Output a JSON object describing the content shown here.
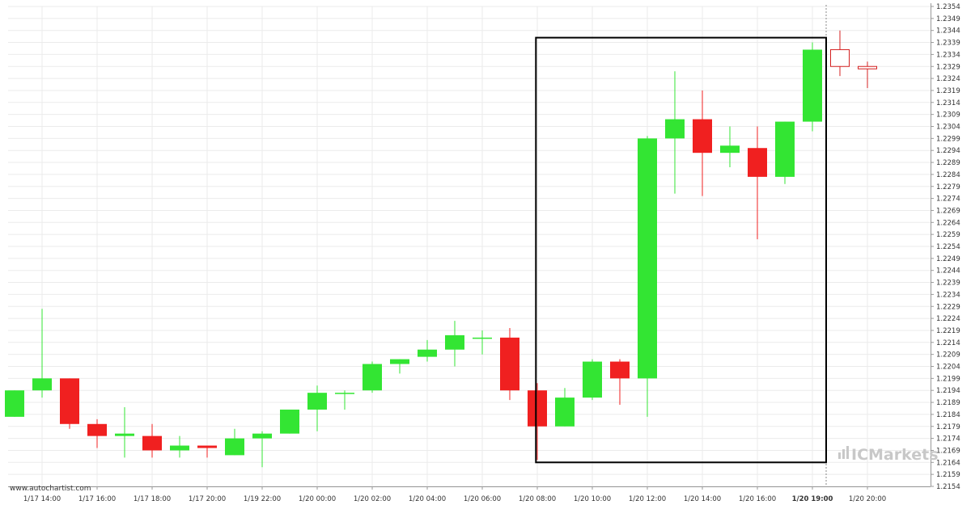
{
  "colors": {
    "bull": "#33e533",
    "bear": "#f02020",
    "hollow_bear": "#d42020",
    "grid": "#ebebeb",
    "pattern_box": "#000000",
    "current_line": "#888888",
    "watermark": "#c8c8c8"
  },
  "brand": {
    "watermark": "ICMarkets",
    "credit": "www.autochartist.com"
  },
  "chart_data": {
    "type": "candlestick",
    "title": "",
    "ylim": [
      1.2154,
      1.2354
    ],
    "yticks": [
      "1.2354",
      "1.2349",
      "1.2344",
      "1.2339",
      "1.2334",
      "1.2329",
      "1.2324",
      "1.2319",
      "1.2314",
      "1.2309",
      "1.2304",
      "1.2299",
      "1.2294",
      "1.2289",
      "1.2284",
      "1.2279",
      "1.2274",
      "1.2269",
      "1.2264",
      "1.2259",
      "1.2254",
      "1.2249",
      "1.2244",
      "1.2239",
      "1.2234",
      "1.2229",
      "1.2224",
      "1.2219",
      "1.2214",
      "1.2209",
      "1.2204",
      "1.2199",
      "1.2194",
      "1.2189",
      "1.2184",
      "1.2179",
      "1.2174",
      "1.2169",
      "1.2164",
      "1.2159",
      "1.2154"
    ],
    "xticks": [
      {
        "label": "1/17 14:00",
        "at": 1
      },
      {
        "label": "1/17 16:00",
        "at": 3
      },
      {
        "label": "1/17 18:00",
        "at": 5
      },
      {
        "label": "1/17 20:00",
        "at": 7
      },
      {
        "label": "1/19 22:00",
        "at": 9
      },
      {
        "label": "1/20 00:00",
        "at": 11
      },
      {
        "label": "1/20 02:00",
        "at": 13
      },
      {
        "label": "1/20 04:00",
        "at": 15
      },
      {
        "label": "1/20 06:00",
        "at": 17
      },
      {
        "label": "1/20 08:00",
        "at": 19
      },
      {
        "label": "1/20 10:00",
        "at": 21
      },
      {
        "label": "1/20 12:00",
        "at": 23
      },
      {
        "label": "1/20 14:00",
        "at": 25
      },
      {
        "label": "1/20 16:00",
        "at": 27
      },
      {
        "label": "1/20 19:00",
        "at": 29,
        "bold": true
      },
      {
        "label": "1/20 20:00",
        "at": 31
      }
    ],
    "candles": [
      {
        "o": 1.2183,
        "h": 1.2194,
        "l": 1.2183,
        "c": 1.2194
      },
      {
        "o": 1.2194,
        "h": 1.2228,
        "l": 1.2191,
        "c": 1.2199
      },
      {
        "o": 1.2199,
        "h": 1.2199,
        "l": 1.2178,
        "c": 1.218
      },
      {
        "o": 1.218,
        "h": 1.2182,
        "l": 1.217,
        "c": 1.2175
      },
      {
        "o": 1.2175,
        "h": 1.2187,
        "l": 1.2166,
        "c": 1.2176
      },
      {
        "o": 1.2175,
        "h": 1.218,
        "l": 1.2166,
        "c": 1.2169
      },
      {
        "o": 1.2169,
        "h": 1.2175,
        "l": 1.2166,
        "c": 1.2171
      },
      {
        "o": 1.2171,
        "h": 1.2171,
        "l": 1.2166,
        "c": 1.217
      },
      {
        "o": 1.2167,
        "h": 1.2178,
        "l": 1.2167,
        "c": 1.2174
      },
      {
        "o": 1.2174,
        "h": 1.2177,
        "l": 1.2162,
        "c": 1.2176
      },
      {
        "o": 1.2176,
        "h": 1.2186,
        "l": 1.2176,
        "c": 1.2186
      },
      {
        "o": 1.2186,
        "h": 1.2196,
        "l": 1.2177,
        "c": 1.2193
      },
      {
        "o": 1.2193,
        "h": 1.2194,
        "l": 1.2186,
        "c": 1.2193
      },
      {
        "o": 1.2194,
        "h": 1.2206,
        "l": 1.2193,
        "c": 1.2205
      },
      {
        "o": 1.2205,
        "h": 1.2207,
        "l": 1.2201,
        "c": 1.2207
      },
      {
        "o": 1.2208,
        "h": 1.2215,
        "l": 1.2206,
        "c": 1.2211
      },
      {
        "o": 1.2211,
        "h": 1.2223,
        "l": 1.2204,
        "c": 1.2217
      },
      {
        "o": 1.2216,
        "h": 1.2219,
        "l": 1.2209,
        "c": 1.2216
      },
      {
        "o": 1.2216,
        "h": 1.222,
        "l": 1.219,
        "c": 1.2194
      },
      {
        "o": 1.2194,
        "h": 1.2197,
        "l": 1.2165,
        "c": 1.2179
      },
      {
        "o": 1.2179,
        "h": 1.2195,
        "l": 1.2179,
        "c": 1.2191
      },
      {
        "o": 1.2191,
        "h": 1.2207,
        "l": 1.219,
        "c": 1.2206
      },
      {
        "o": 1.2206,
        "h": 1.2207,
        "l": 1.2188,
        "c": 1.2199
      },
      {
        "o": 1.2199,
        "h": 1.23,
        "l": 1.2183,
        "c": 1.2299
      },
      {
        "o": 1.2299,
        "h": 1.2327,
        "l": 1.2276,
        "c": 1.2307
      },
      {
        "o": 1.2307,
        "h": 1.2319,
        "l": 1.2275,
        "c": 1.2293
      },
      {
        "o": 1.2293,
        "h": 1.2304,
        "l": 1.2287,
        "c": 1.2296
      },
      {
        "o": 1.2295,
        "h": 1.2304,
        "l": 1.2257,
        "c": 1.2283
      },
      {
        "o": 1.2283,
        "h": 1.2306,
        "l": 1.228,
        "c": 1.2306
      },
      {
        "o": 1.2306,
        "h": 1.2339,
        "l": 1.2302,
        "c": 1.2336
      },
      {
        "o": 1.2336,
        "h": 1.2344,
        "l": 1.2325,
        "c": 1.2329,
        "hollow": true
      },
      {
        "o": 1.2329,
        "h": 1.2331,
        "l": 1.232,
        "c": 1.2328,
        "hollow": true
      }
    ],
    "pattern_box": {
      "from_index": 18.95,
      "to_index": 29.5,
      "high": 1.2341,
      "low": 1.2164
    },
    "current_marker_index": 29.5
  }
}
